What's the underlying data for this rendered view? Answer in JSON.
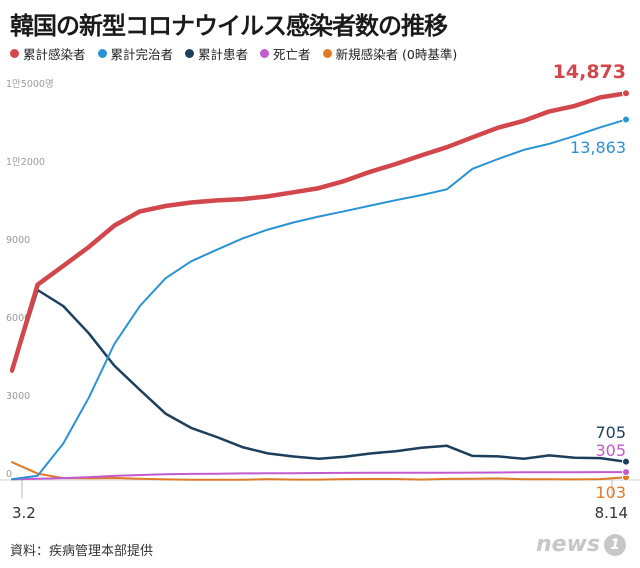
{
  "title": "韓国の新型コロナウイルス感染者数の推移",
  "source": "資料：疾病管理本部提供",
  "logo": {
    "text": "news",
    "badge": "1"
  },
  "chart_data": {
    "type": "line",
    "x": [
      "3.2",
      "3.9",
      "3.16",
      "3.23",
      "3.30",
      "4.6",
      "4.13",
      "4.20",
      "4.27",
      "5.4",
      "5.11",
      "5.18",
      "5.25",
      "6.1",
      "6.8",
      "6.15",
      "6.22",
      "6.29",
      "7.6",
      "7.13",
      "7.20",
      "7.27",
      "8.3",
      "8.10",
      "8.14"
    ],
    "x_tick_labels": [
      "3.2",
      "8.14"
    ],
    "ylim": [
      0,
      15000
    ],
    "y_ticks": [
      {
        "value": 0,
        "label": "0"
      },
      {
        "value": 3000,
        "label": "3000"
      },
      {
        "value": 6000,
        "label": "6000"
      },
      {
        "value": 9000,
        "label": "9000"
      },
      {
        "value": 12000,
        "label": "1만2000"
      },
      {
        "value": 15000,
        "label": "1만5000명"
      }
    ],
    "series": [
      {
        "name": "累計感染者",
        "color": "#d2474b",
        "end_label": "14,873",
        "values": [
          4212,
          7513,
          8236,
          8961,
          9786,
          10331,
          10537,
          10674,
          10752,
          10804,
          10909,
          11065,
          11225,
          11503,
          11852,
          12155,
          12484,
          12800,
          13181,
          13551,
          13816,
          14175,
          14389,
          14714,
          14873
        ]
      },
      {
        "name": "累計完治者",
        "color": "#2a93d5",
        "end_label": "13,863",
        "values": [
          30,
          166,
          1401,
          3166,
          5228,
          6694,
          7757,
          8411,
          8854,
          9283,
          9632,
          9904,
          10135,
          10340,
          10552,
          10760,
          10956,
          11181,
          11970,
          12348,
          12698,
          12929,
          13233,
          13567,
          13863
        ]
      },
      {
        "name": "累計患者",
        "color": "#1b3f5c",
        "end_label": "705",
        "values": [
          4165,
          7307,
          6694,
          5641,
          4400,
          3464,
          2552,
          2003,
          1655,
          1266,
          1022,
          905,
          818,
          897,
          1018,
          1107,
          1239,
          1317,
          925,
          907,
          814,
          946,
          855,
          842,
          705
        ]
      },
      {
        "name": "死亡者",
        "color": "#c15bce",
        "end_label": "305",
        "values": [
          22,
          51,
          75,
          111,
          158,
          192,
          222,
          236,
          244,
          254,
          256,
          263,
          269,
          272,
          276,
          280,
          282,
          282,
          285,
          289,
          297,
          299,
          301,
          304,
          305
        ]
      },
      {
        "name": "新規感染者 (0時基準)",
        "color": "#e07a24",
        "end_label": "103",
        "values": [
          686,
          248,
          74,
          64,
          78,
          47,
          25,
          9,
          10,
          8,
          35,
          15,
          16,
          35,
          38,
          37,
          17,
          42,
          48,
          62,
          26,
          28,
          23,
          34,
          103
        ]
      }
    ],
    "grid": false,
    "legend_position": "top-left"
  }
}
